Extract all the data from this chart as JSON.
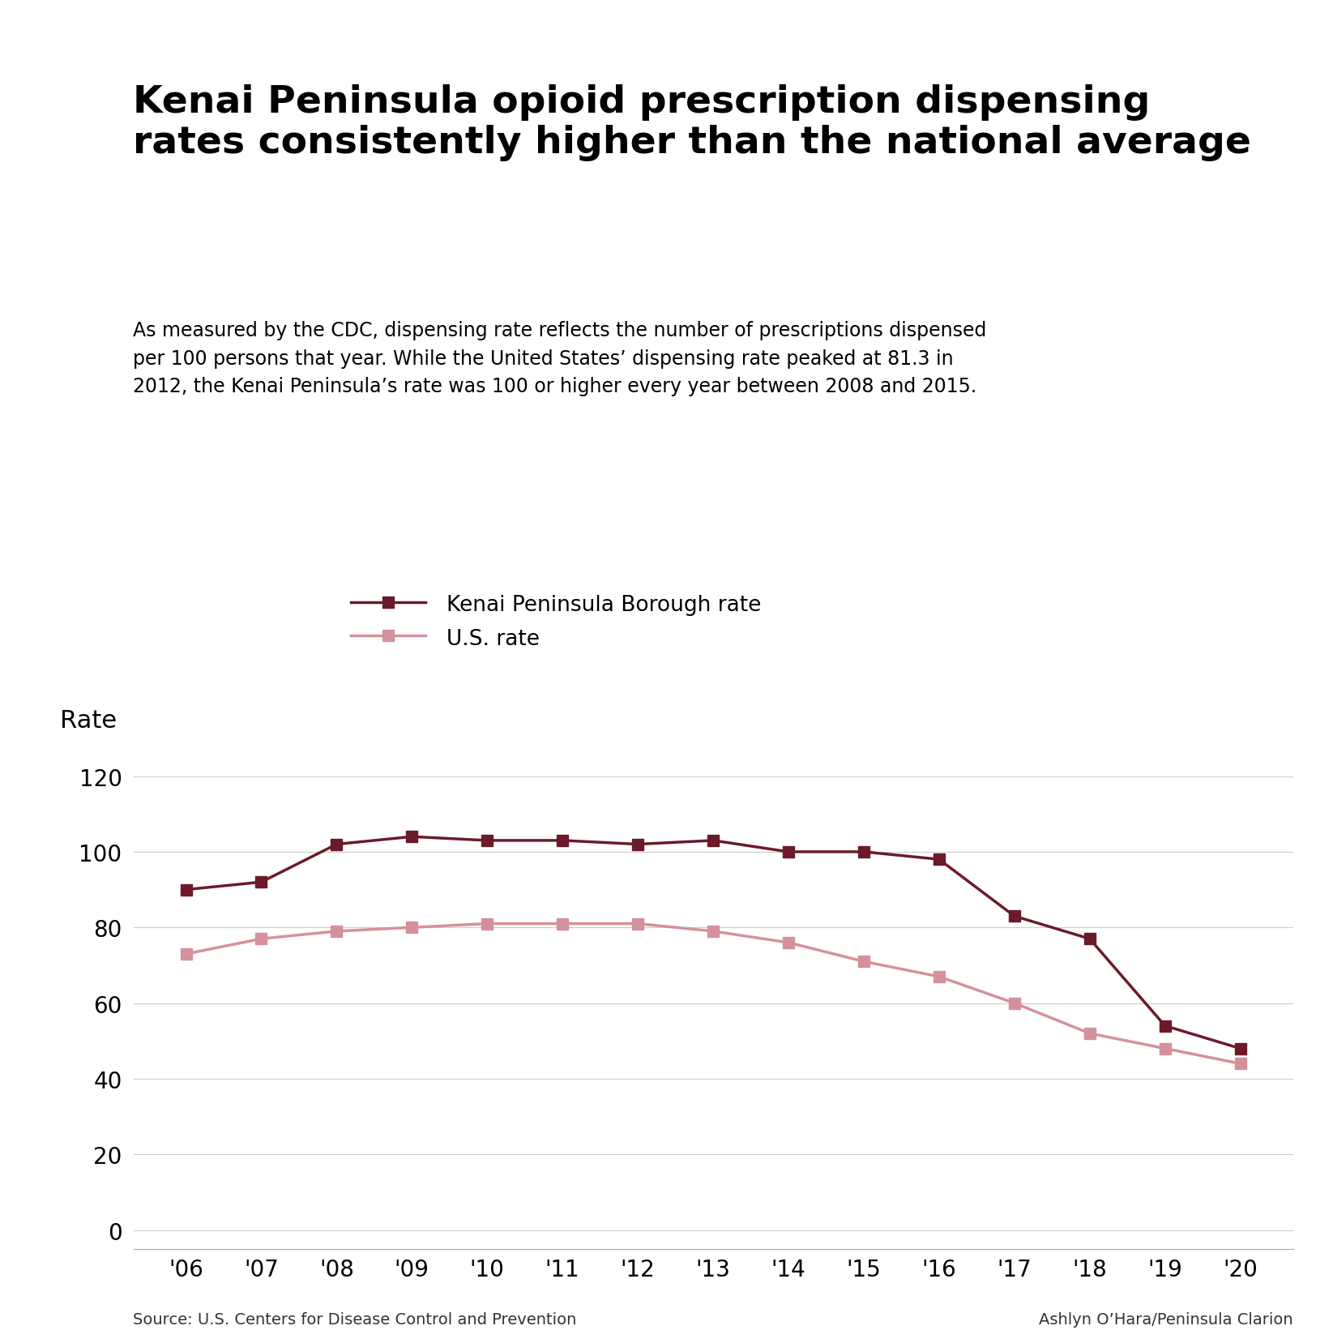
{
  "title": "Kenai Peninsula opioid prescription dispensing\nrates consistently higher than the national average",
  "subtitle": "As measured by the CDC, dispensing rate reflects the number of prescriptions dispensed\nper 100 persons that year. While the United States’ dispensing rate peaked at 81.3 in\n2012, the Kenai Peninsula’s rate was 100 or higher every year between 2008 and 2015.",
  "ylabel": "Rate",
  "source_left": "Source: U.S. Centers for Disease Control and Prevention",
  "source_right": "Ashlyn O’Hara/Peninsula Clarion",
  "years": [
    2006,
    2007,
    2008,
    2009,
    2010,
    2011,
    2012,
    2013,
    2014,
    2015,
    2016,
    2017,
    2018,
    2019,
    2020
  ],
  "kenai_values": [
    90,
    92,
    102,
    104,
    103,
    103,
    102,
    103,
    100,
    100,
    98,
    83,
    77,
    54,
    48
  ],
  "us_values": [
    73,
    77,
    79,
    80,
    81,
    81,
    81,
    79,
    76,
    71,
    67,
    60,
    52,
    48,
    44
  ],
  "kenai_color": "#6B1A2A",
  "us_color": "#D4919B",
  "background_color": "#FFFFFF",
  "yticks": [
    0,
    20,
    40,
    60,
    80,
    100,
    120
  ],
  "ylim": [
    -5,
    130
  ],
  "legend_kenai": "Kenai Peninsula Borough rate",
  "legend_us": "U.S. rate",
  "title_fontsize": 34,
  "subtitle_fontsize": 17,
  "axis_label_fontsize": 22,
  "tick_fontsize": 20,
  "legend_fontsize": 19,
  "source_fontsize": 14,
  "line_width": 2.5,
  "marker_size": 10
}
